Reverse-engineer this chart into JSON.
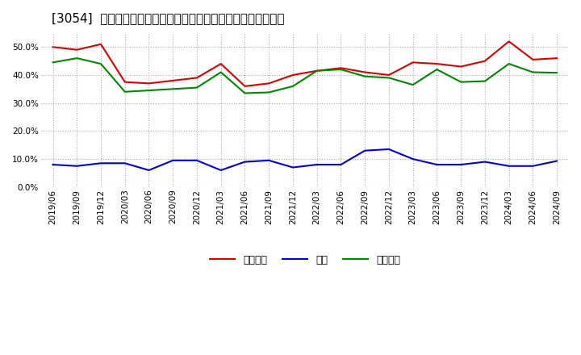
{
  "title": "[3054]  売上債権、在庫、買入債務の総資産に対する比率の推移",
  "dates": [
    "2019/06",
    "2019/09",
    "2019/12",
    "2020/03",
    "2020/06",
    "2020/09",
    "2020/12",
    "2021/03",
    "2021/06",
    "2021/09",
    "2021/12",
    "2022/03",
    "2022/06",
    "2022/09",
    "2022/12",
    "2023/03",
    "2023/06",
    "2023/09",
    "2023/12",
    "2024/03",
    "2024/06",
    "2024/09"
  ],
  "urikake": [
    0.5,
    0.49,
    0.51,
    0.375,
    0.37,
    0.38,
    0.39,
    0.44,
    0.36,
    0.37,
    0.4,
    0.415,
    0.425,
    0.41,
    0.4,
    0.445,
    0.44,
    0.43,
    0.45,
    0.52,
    0.455,
    0.46
  ],
  "zaiko": [
    0.08,
    0.075,
    0.085,
    0.085,
    0.06,
    0.095,
    0.095,
    0.06,
    0.09,
    0.095,
    0.07,
    0.08,
    0.08,
    0.13,
    0.135,
    0.1,
    0.08,
    0.08,
    0.09,
    0.075,
    0.075,
    0.093
  ],
  "kaiire": [
    0.445,
    0.46,
    0.44,
    0.34,
    0.345,
    0.35,
    0.355,
    0.41,
    0.335,
    0.338,
    0.36,
    0.415,
    0.42,
    0.395,
    0.39,
    0.365,
    0.42,
    0.375,
    0.378,
    0.44,
    0.41,
    0.408
  ],
  "urikake_color": "#dd0000",
  "zaiko_color": "#0000dd",
  "kaiire_color": "#008800",
  "bg_color": "#ffffff",
  "plot_bg_color": "#ffffff",
  "grid_color": "#aaaaaa",
  "ylim": [
    0.0,
    0.55
  ],
  "yticks": [
    0.0,
    0.1,
    0.2,
    0.3,
    0.4,
    0.5
  ],
  "legend_labels": [
    "売上債権",
    "在庫",
    "買入債務"
  ],
  "title_fontsize": 11,
  "tick_fontsize": 7.5,
  "legend_fontsize": 9
}
